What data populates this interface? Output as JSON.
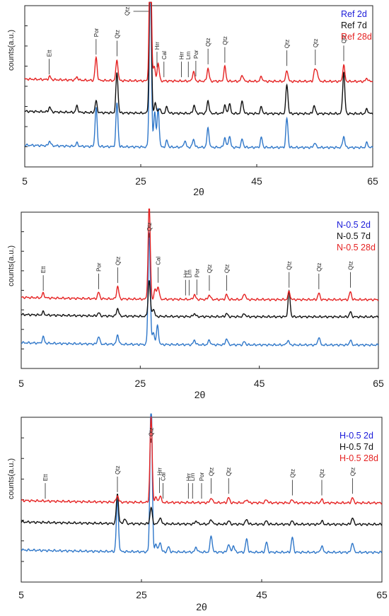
{
  "chart_data": [
    {
      "type": "line",
      "ylabel": "counts(a.u.)",
      "xlabel": "2θ",
      "xlim": [
        5,
        65
      ],
      "xticks": [
        5,
        25,
        45,
        65
      ],
      "series": [
        {
          "name": "Ref 2d",
          "color": "#2F77C9",
          "baseline": 0.12,
          "peaks": [
            [
              9.3,
              0.03
            ],
            [
              14,
              0.02
            ],
            [
              17.3,
              0.24
            ],
            [
              20.9,
              0.27
            ],
            [
              26.65,
              1.05
            ],
            [
              27.4,
              0.22
            ],
            [
              28.0,
              0.24
            ],
            [
              29.5,
              0.04
            ],
            [
              32.6,
              0.04
            ],
            [
              34.1,
              0.05
            ],
            [
              36.6,
              0.12
            ],
            [
              39.5,
              0.06
            ],
            [
              40.3,
              0.07
            ],
            [
              42.5,
              0.05
            ],
            [
              45.8,
              0.06
            ],
            [
              50.2,
              0.18
            ],
            [
              55,
              0.03
            ],
            [
              60.0,
              0.07
            ],
            [
              64,
              0.03
            ]
          ]
        },
        {
          "name": "Ref 7d",
          "color": "#111111",
          "baseline": 0.33,
          "peaks": [
            [
              9.3,
              0.03
            ],
            [
              14,
              0.04
            ],
            [
              17.3,
              0.07
            ],
            [
              20.9,
              0.25
            ],
            [
              26.65,
              1.0
            ],
            [
              27.5,
              0.06
            ],
            [
              28.2,
              0.03
            ],
            [
              29.5,
              0.04
            ],
            [
              34.2,
              0.05
            ],
            [
              36.6,
              0.08
            ],
            [
              39.5,
              0.05
            ],
            [
              40.3,
              0.06
            ],
            [
              42.5,
              0.08
            ],
            [
              45.8,
              0.04
            ],
            [
              50.2,
              0.18
            ],
            [
              54.9,
              0.05
            ],
            [
              60.0,
              0.26
            ],
            [
              64,
              0.03
            ]
          ]
        },
        {
          "name": "Ref 28d",
          "color": "#E52222",
          "baseline": 0.53,
          "peaks": [
            [
              9.3,
              0.02
            ],
            [
              14,
              0.02
            ],
            [
              17.3,
              0.14
            ],
            [
              20.9,
              0.13
            ],
            [
              26.65,
              0.97
            ],
            [
              27.3,
              0.09
            ],
            [
              28.0,
              0.11
            ],
            [
              34.1,
              0.06
            ],
            [
              36.6,
              0.08
            ],
            [
              39.5,
              0.09
            ],
            [
              42.5,
              0.04
            ],
            [
              45.8,
              0.03
            ],
            [
              50.2,
              0.07
            ],
            [
              55,
              0.07
            ],
            [
              55.4,
              0.06
            ],
            [
              60.0,
              0.1
            ],
            [
              64,
              0.02
            ]
          ]
        }
      ],
      "annotations": [
        {
          "label": "Ett",
          "x": 9.2
        },
        {
          "label": "Por",
          "x": 17.3
        },
        {
          "label": "Qtz",
          "x": 20.9
        },
        {
          "label": "Qtz",
          "x": 23.0,
          "pointer": true
        },
        {
          "label": "Hrr",
          "x": 27.8
        },
        {
          "label": "Cal",
          "x": 29.0
        },
        {
          "label": "Hrr",
          "x": 32.0
        },
        {
          "label": "Lrn",
          "x": 33.2
        },
        {
          "label": "Por",
          "x": 34.5
        },
        {
          "label": "Qtz",
          "x": 36.6
        },
        {
          "label": "Qtz",
          "x": 39.5
        },
        {
          "label": "Qtz",
          "x": 50.2
        },
        {
          "label": "Qtz",
          "x": 55.1
        },
        {
          "label": "Qtz",
          "x": 60.0
        }
      ]
    },
    {
      "type": "line",
      "ylabel": "counts(a.u.)",
      "xlabel": "2θ",
      "xlim": [
        5,
        65
      ],
      "xticks": [
        5,
        25,
        45,
        65
      ],
      "series": [
        {
          "name": "N-0.5 2d",
          "color": "#2F77C9",
          "baseline": 0.15,
          "peaks": [
            [
              8.7,
              0.04
            ],
            [
              18,
              0.05
            ],
            [
              21.2,
              0.06
            ],
            [
              26.5,
              0.72
            ],
            [
              27.2,
              0.08
            ],
            [
              27.9,
              0.12
            ],
            [
              34.1,
              0.03
            ],
            [
              36.6,
              0.03
            ],
            [
              39.5,
              0.04
            ],
            [
              42.5,
              0.02
            ],
            [
              49.8,
              0.03
            ],
            [
              55,
              0.05
            ],
            [
              60.3,
              0.03
            ]
          ]
        },
        {
          "name": "N-0.5 7d",
          "color": "#111111",
          "baseline": 0.33,
          "peaks": [
            [
              8.7,
              0.02
            ],
            [
              18,
              0.02
            ],
            [
              21.2,
              0.05
            ],
            [
              26.5,
              0.23
            ],
            [
              27.2,
              0.05
            ],
            [
              34.1,
              0.02
            ],
            [
              39.5,
              0.02
            ],
            [
              42.5,
              0.02
            ],
            [
              50.0,
              0.16
            ],
            [
              60.3,
              0.03
            ]
          ]
        },
        {
          "name": "N-0.5 28d",
          "color": "#E52222",
          "baseline": 0.44,
          "peaks": [
            [
              8.7,
              0.03
            ],
            [
              18,
              0.04
            ],
            [
              21.2,
              0.08
            ],
            [
              26.5,
              0.6
            ],
            [
              27.5,
              0.06
            ],
            [
              28.0,
              0.08
            ],
            [
              34.1,
              0.03
            ],
            [
              36.6,
              0.03
            ],
            [
              39.5,
              0.03
            ],
            [
              42.5,
              0.04
            ],
            [
              50.0,
              0.05
            ],
            [
              55,
              0.04
            ],
            [
              60.3,
              0.05
            ]
          ]
        }
      ],
      "annotations": [
        {
          "label": "Ett",
          "x": 8.7
        },
        {
          "label": "Por",
          "x": 18.0
        },
        {
          "label": "Qtz",
          "x": 21.2
        },
        {
          "label": "Qtz",
          "x": 26.5
        },
        {
          "label": "Cal",
          "x": 28.0
        },
        {
          "label": "Hrr",
          "x": 32.6
        },
        {
          "label": "Lrn",
          "x": 33.2
        },
        {
          "label": "Por",
          "x": 34.5
        },
        {
          "label": "Qtz",
          "x": 36.6
        },
        {
          "label": "Qtz",
          "x": 39.5
        },
        {
          "label": "Qtz",
          "x": 50.0
        },
        {
          "label": "Qtz",
          "x": 55.0
        },
        {
          "label": "Qtz",
          "x": 60.3
        }
      ]
    },
    {
      "type": "line",
      "ylabel": "counts(a.u.)",
      "xlabel": "2θ",
      "xlim": [
        5,
        65
      ],
      "xticks": [
        5,
        25,
        45,
        65
      ],
      "series": [
        {
          "name": "H-0.5 2d",
          "color": "#2F77C9",
          "baseline": 0.18,
          "peaks": [
            [
              21.0,
              0.31
            ],
            [
              26.6,
              0.95
            ],
            [
              27.4,
              0.05
            ],
            [
              28.1,
              0.06
            ],
            [
              29.5,
              0.03
            ],
            [
              34.1,
              0.03
            ],
            [
              36.6,
              0.1
            ],
            [
              39.5,
              0.05
            ],
            [
              40.3,
              0.04
            ],
            [
              42.5,
              0.08
            ],
            [
              45.8,
              0.06
            ],
            [
              50.1,
              0.09
            ],
            [
              55,
              0.04
            ],
            [
              60.1,
              0.06
            ]
          ]
        },
        {
          "name": "H-0.5 7d",
          "color": "#111111",
          "baseline": 0.35,
          "peaks": [
            [
              21.0,
              0.18
            ],
            [
              22.2,
              0.03
            ],
            [
              26.6,
              0.1
            ],
            [
              28.1,
              0.04
            ],
            [
              34.1,
              0.02
            ],
            [
              36.6,
              0.03
            ],
            [
              39.5,
              0.02
            ],
            [
              42.5,
              0.03
            ],
            [
              45.8,
              0.02
            ],
            [
              50.1,
              0.02
            ],
            [
              55,
              0.02
            ],
            [
              60.1,
              0.04
            ]
          ]
        },
        {
          "name": "H-0.5 28d",
          "color": "#E52222",
          "baseline": 0.48,
          "peaks": [
            [
              21.0,
              0.04
            ],
            [
              26.6,
              0.52
            ],
            [
              27.4,
              0.03
            ],
            [
              28.1,
              0.04
            ],
            [
              36.6,
              0.03
            ],
            [
              39.5,
              0.03
            ],
            [
              42.5,
              0.02
            ],
            [
              45.8,
              0.02
            ],
            [
              50.1,
              0.02
            ],
            [
              55,
              0.02
            ],
            [
              60.1,
              0.03
            ]
          ]
        }
      ],
      "annotations": [
        {
          "label": "Ett",
          "x": 9.0
        },
        {
          "label": "Qtz",
          "x": 21.0
        },
        {
          "label": "Qtz",
          "x": 26.6
        },
        {
          "label": "Hrr",
          "x": 28.0
        },
        {
          "label": "Cal",
          "x": 28.6
        },
        {
          "label": "Hrr",
          "x": 32.8
        },
        {
          "label": "Lrn",
          "x": 33.5
        },
        {
          "label": "Por",
          "x": 35.0
        },
        {
          "label": "Qtz",
          "x": 36.6
        },
        {
          "label": "Qtz",
          "x": 39.5
        },
        {
          "label": "Qtz",
          "x": 50.1
        },
        {
          "label": "Qtz",
          "x": 55.0
        },
        {
          "label": "Qtz",
          "x": 60.1
        }
      ]
    }
  ]
}
